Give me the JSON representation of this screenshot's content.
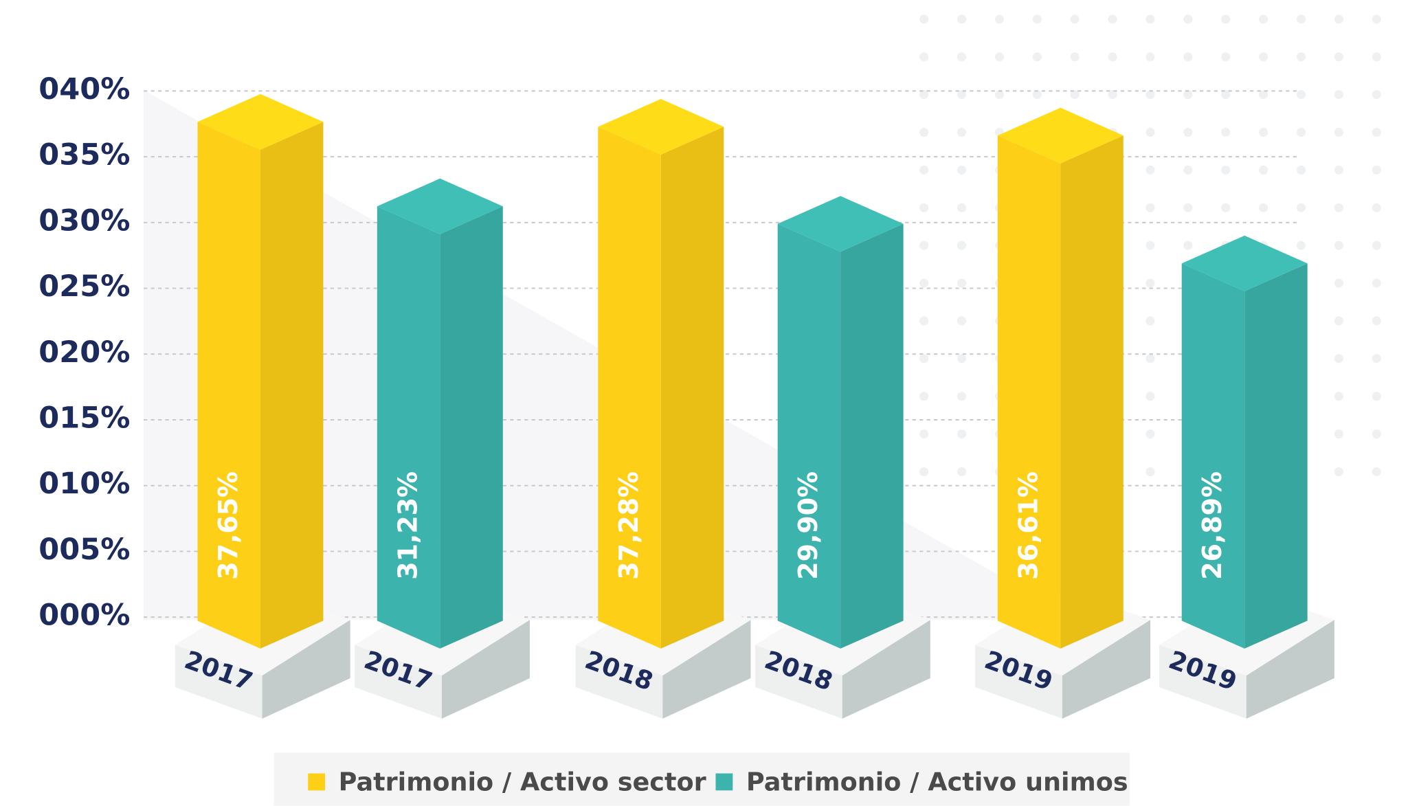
{
  "chart_data": {
    "type": "bar3d",
    "categories": [
      "2017",
      "2018",
      "2019"
    ],
    "series": [
      {
        "name": "Patrimonio / Activo sector",
        "color": "#fdd017",
        "values": [
          37.65,
          37.28,
          36.61
        ],
        "value_labels": [
          "37,65%",
          "37,28%",
          "36,61%"
        ]
      },
      {
        "name": "Patrimonio / Activo unimos",
        "color": "#3cb4ad",
        "values": [
          31.23,
          29.9,
          26.89
        ],
        "value_labels": [
          "31,23%",
          "29,90%",
          "26,89%"
        ]
      }
    ],
    "ylim": [
      0,
      40
    ],
    "yticks": [
      {
        "value": 0,
        "label": "000%"
      },
      {
        "value": 5,
        "label": "005%"
      },
      {
        "value": 10,
        "label": "010%"
      },
      {
        "value": 15,
        "label": "015%"
      },
      {
        "value": 20,
        "label": "020%"
      },
      {
        "value": 25,
        "label": "025%"
      },
      {
        "value": 30,
        "label": "030%"
      },
      {
        "value": 35,
        "label": "035%"
      },
      {
        "value": 40,
        "label": "040%"
      }
    ],
    "grid": true,
    "legend": "bottom"
  }
}
